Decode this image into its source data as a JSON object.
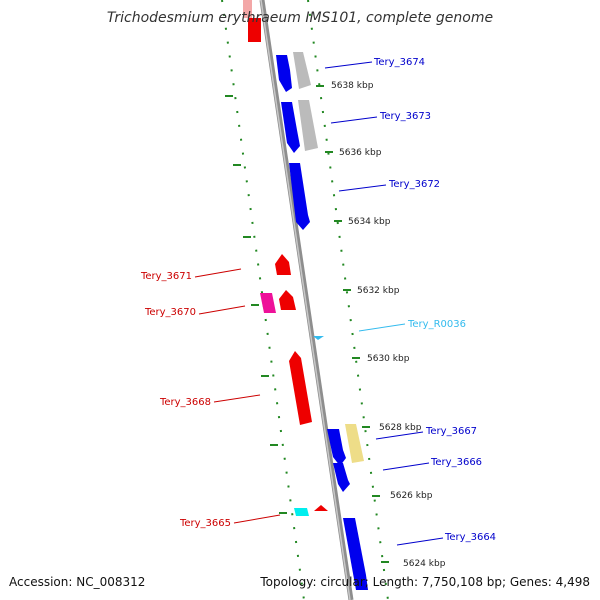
{
  "title": "Trichodesmium erythraeum IMS101, complete genome",
  "footer": {
    "accession": "Accession: NC_008312",
    "stats": "Topology: circular; Length: 7,750,108 bp; Genes: 4,498"
  },
  "colors": {
    "forward": "#0000ee",
    "reverse": "#ee0000",
    "rna": "#33bbee",
    "trna": "#00eeee",
    "pseudo_pink": "#ee1199",
    "homolog_grey": "#bbbbbb",
    "homolog_khaki": "#eedd88",
    "ticks": "#228822"
  },
  "scale": {
    "ticks": [
      "5638 kbp",
      "5636 kbp",
      "5634 kbp",
      "5632 kbp",
      "5630 kbp",
      "5628 kbp",
      "5626 kbp",
      "5624 kbp"
    ]
  },
  "genes": [
    {
      "name": "Tery_3674",
      "strand": "forward",
      "color": "#0000ee"
    },
    {
      "name": "Tery_3673",
      "strand": "forward",
      "color": "#0000ee"
    },
    {
      "name": "Tery_3672",
      "strand": "forward",
      "color": "#0000ee"
    },
    {
      "name": "Tery_3671",
      "strand": "reverse",
      "color": "#ee0000"
    },
    {
      "name": "Tery_3670",
      "strand": "reverse",
      "color": "#ee0000"
    },
    {
      "name": "Tery_R0036",
      "strand": "forward",
      "color": "#33bbee"
    },
    {
      "name": "Tery_3668",
      "strand": "reverse",
      "color": "#ee0000"
    },
    {
      "name": "Tery_3667",
      "strand": "forward",
      "color": "#0000ee"
    },
    {
      "name": "Tery_3666",
      "strand": "forward",
      "color": "#0000ee"
    },
    {
      "name": "Tery_3665",
      "strand": "reverse",
      "color": "#ee0000"
    },
    {
      "name": "Tery_3664",
      "strand": "forward",
      "color": "#0000ee"
    }
  ]
}
